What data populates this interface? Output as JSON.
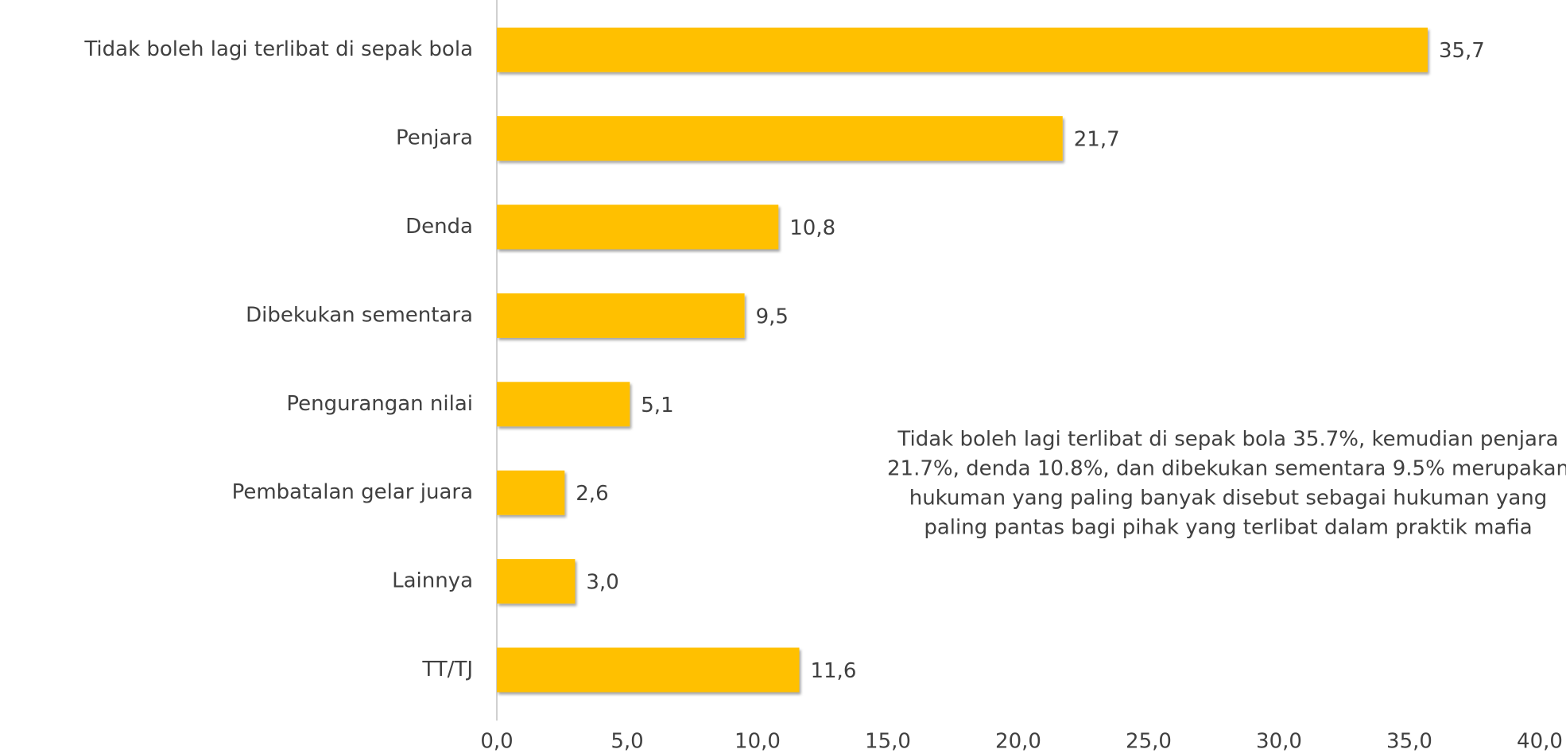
{
  "chart_data": {
    "type": "bar",
    "orientation": "horizontal",
    "categories": [
      "Tidak boleh lagi terlibat di sepak bola",
      "Penjara",
      "Denda",
      "Dibekukan sementara",
      "Pengurangan nilai",
      "Pembatalan gelar juara",
      "Lainnya",
      "TT/TJ"
    ],
    "values": [
      35.7,
      21.7,
      10.8,
      9.5,
      5.1,
      2.6,
      3.0,
      11.6
    ],
    "value_labels": [
      "35,7",
      "21,7",
      "10,8",
      "9,5",
      "5,1",
      "2,6",
      "3,0",
      "11,6"
    ],
    "color": "#FFC000",
    "xlim": [
      0,
      40
    ],
    "xticks": [
      {
        "value": 0,
        "label": "0,0"
      },
      {
        "value": 5,
        "label": "5,0"
      },
      {
        "value": 10,
        "label": "10,0"
      },
      {
        "value": 15,
        "label": "15,0"
      },
      {
        "value": 20,
        "label": "20,0"
      },
      {
        "value": 25,
        "label": "25,0"
      },
      {
        "value": 30,
        "label": "30,0"
      },
      {
        "value": 35,
        "label": "35,0"
      },
      {
        "value": 40,
        "label": "40,0"
      }
    ],
    "grid": false,
    "annotation": [
      "Tidak boleh lagi terlibat di sepak bola 35.7%, kemudian penjara",
      "21.7%, denda 10.8%, dan dibekukan sementara 9.5% merupakan",
      "hukuman yang paling banyak disebut sebagai hukuman yang",
      "paling pantas bagi pihak yang terlibat dalam praktik mafia"
    ]
  }
}
